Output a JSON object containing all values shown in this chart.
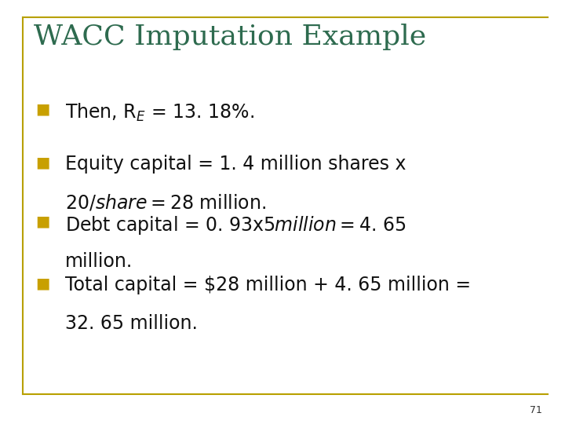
{
  "title": "WACC Imputation Example",
  "title_color": "#2E6B4F",
  "background_color": "#FFFFFF",
  "border_color": "#B8A000",
  "bullet_color": "#C8A000",
  "bullet_entries": [
    [
      "Then, R$_{E}$ = 13. 18%.",
      null
    ],
    [
      "Equity capital = 1. 4 million shares x",
      "$20/share = $28 million."
    ],
    [
      "Debt capital = 0. 93x$5 million = $4. 65",
      "million."
    ],
    [
      "Total capital = $28 million + 4. 65 million =",
      "32. 65 million."
    ]
  ],
  "page_number": "71",
  "title_fontsize": 26,
  "body_fontsize": 17,
  "page_num_fontsize": 9
}
